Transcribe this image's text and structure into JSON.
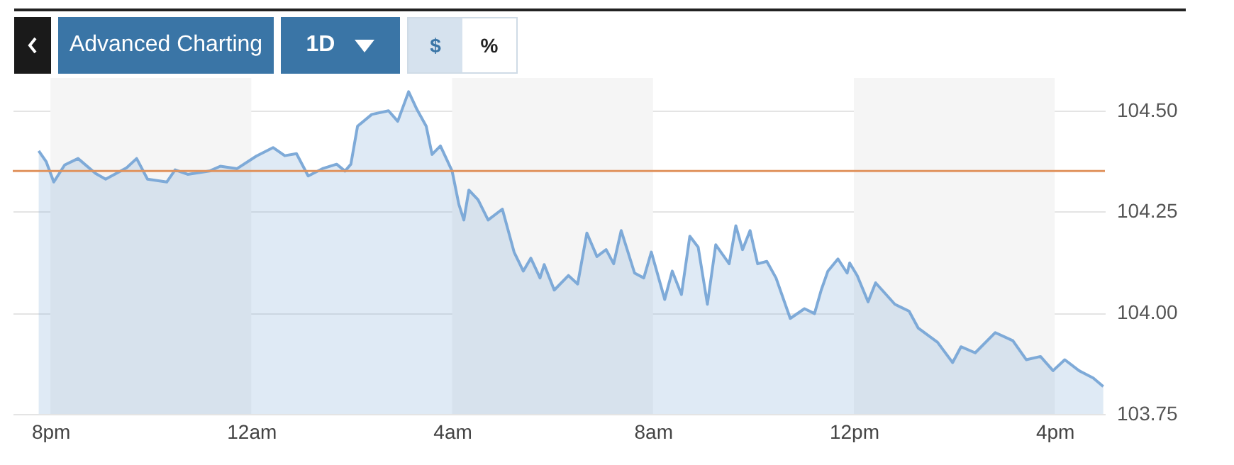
{
  "chart_data": {
    "type": "area",
    "annotations": [
      "Advanced Charting",
      "1D",
      "$",
      "%"
    ],
    "x": [
      "--01-01T19:46",
      "--01-01T19:55",
      "--01-01T20:04",
      "--01-01T20:17",
      "--01-01T20:33",
      "--01-01T20:54",
      "--01-01T21:06",
      "--01-01T21:31",
      "--01-01T21:43",
      "--01-01T21:56",
      "--01-01T22:19",
      "--01-01T22:29",
      "--01-01T22:44",
      "--01-01T23:10",
      "--01-01T23:23",
      "--01-01T23:43",
      "--01-02T00:06",
      "--01-02T00:26",
      "--01-02T00:40",
      "--01-02T00:54",
      "--01-02T01:08",
      "--01-02T01:25",
      "--01-02T01:42",
      "--01-02T01:52",
      "--01-02T01:59",
      "--01-02T02:07",
      "--01-02T02:24",
      "--01-02T02:44",
      "--01-02T02:55",
      "--01-02T03:08",
      "--01-02T03:18",
      "--01-02T03:29",
      "--01-02T03:36",
      "--01-02T03:46",
      "--01-02T04:00",
      "--01-02T04:08",
      "--01-02T04:14",
      "--01-02T04:20",
      "--01-02T04:31",
      "--01-02T04:43",
      "--01-02T05:00",
      "--01-02T05:14",
      "--01-02T05:25",
      "--01-02T05:34",
      "--01-02T05:45",
      "--01-02T05:50",
      "--01-02T06:02",
      "--01-02T06:19",
      "--01-02T06:30",
      "--01-02T06:41",
      "--01-02T06:53",
      "--01-02T07:04",
      "--01-02T07:13",
      "--01-02T07:22",
      "--01-02T07:38",
      "--01-02T07:49",
      "--01-02T07:58",
      "--01-02T08:14",
      "--01-02T08:23",
      "--01-02T08:34",
      "--01-02T08:44",
      "--01-02T08:54",
      "--01-02T09:05",
      "--01-02T09:15",
      "--01-02T09:31",
      "--01-02T09:39",
      "--01-02T09:47",
      "--01-02T09:56",
      "--01-02T10:05",
      "--01-02T10:16",
      "--01-02T10:27",
      "--01-02T10:44",
      "--01-02T11:01",
      "--01-02T11:13",
      "--01-02T11:21",
      "--01-02T11:29",
      "--01-02T11:41",
      "--01-02T11:52",
      "--01-02T11:55",
      "--01-02T12:04",
      "--01-02T12:17",
      "--01-02T12:26",
      "--01-02T12:49",
      "--01-02T13:06",
      "--01-02T13:17",
      "--01-02T13:40",
      "--01-02T13:58",
      "--01-02T14:08",
      "--01-02T14:25",
      "--01-02T14:49",
      "--01-02T15:10",
      "--01-02T15:26",
      "--01-02T15:43",
      "--01-02T15:58",
      "--01-02T16:12",
      "--01-02T16:29",
      "--01-02T16:46",
      "--01-02T16:58"
    ],
    "series": [
      {
        "color": "#7eaad8",
        "values": [
          104.4,
          104.373,
          104.323,
          104.365,
          104.381,
          104.344,
          104.33,
          104.358,
          104.381,
          104.33,
          104.323,
          104.353,
          104.342,
          104.35,
          104.362,
          104.356,
          104.387,
          104.408,
          104.388,
          104.393,
          104.338,
          104.356,
          104.367,
          104.35,
          104.367,
          104.461,
          104.49,
          104.499,
          104.473,
          104.546,
          104.502,
          104.461,
          104.391,
          104.412,
          104.35,
          104.268,
          104.229,
          104.303,
          104.279,
          104.229,
          104.256,
          104.15,
          104.103,
          104.135,
          104.086,
          104.119,
          104.056,
          104.092,
          104.071,
          104.197,
          104.139,
          104.156,
          104.121,
          104.203,
          104.098,
          104.086,
          104.15,
          104.033,
          104.103,
          104.045,
          104.189,
          104.162,
          104.021,
          104.168,
          104.121,
          104.215,
          104.156,
          104.203,
          104.121,
          104.127,
          104.086,
          103.986,
          104.01,
          103.998,
          104.056,
          104.103,
          104.133,
          104.098,
          104.123,
          104.092,
          104.027,
          104.074,
          104.021,
          104.004,
          103.962,
          103.927,
          103.877,
          103.916,
          103.901,
          103.951,
          103.931,
          103.884,
          103.892,
          103.857,
          103.884,
          103.857,
          103.839,
          103.818
        ]
      }
    ],
    "xlim": [
      "--01-01T19:15",
      "--01-02T17:00"
    ],
    "xticks": [
      {
        "value": "--01-01T20:00",
        "label": "8pm"
      },
      {
        "value": "--01-02T00:00",
        "label": "12am"
      },
      {
        "value": "--01-02T04:00",
        "label": "4am"
      },
      {
        "value": "--01-02T08:00",
        "label": "8am"
      },
      {
        "value": "--01-02T12:00",
        "label": "12pm"
      },
      {
        "value": "--01-02T16:00",
        "label": "4pm"
      }
    ],
    "ylim": [
      103.75,
      104.58
    ],
    "yticks": [
      {
        "value": 103.75,
        "label": "103.75"
      },
      {
        "value": 104,
        "label": "104.00"
      },
      {
        "value": 104.25,
        "label": "104.25"
      },
      {
        "value": 104.5,
        "label": "104.50"
      }
    ],
    "grid": "y",
    "ref_lines": [
      {
        "axis": "y",
        "value": 104.35,
        "color": "#e0935e"
      }
    ],
    "bands": [
      {
        "axis": "x",
        "from": "--01-01T20:00",
        "to": "--01-02T00:00",
        "color": "#f5f5f5"
      },
      {
        "axis": "x",
        "from": "--01-02T04:00",
        "to": "--01-02T08:00",
        "color": "#f5f5f5"
      },
      {
        "axis": "x",
        "from": "--01-02T12:00",
        "to": "--01-02T16:00",
        "color": "#f5f5f5"
      }
    ]
  }
}
